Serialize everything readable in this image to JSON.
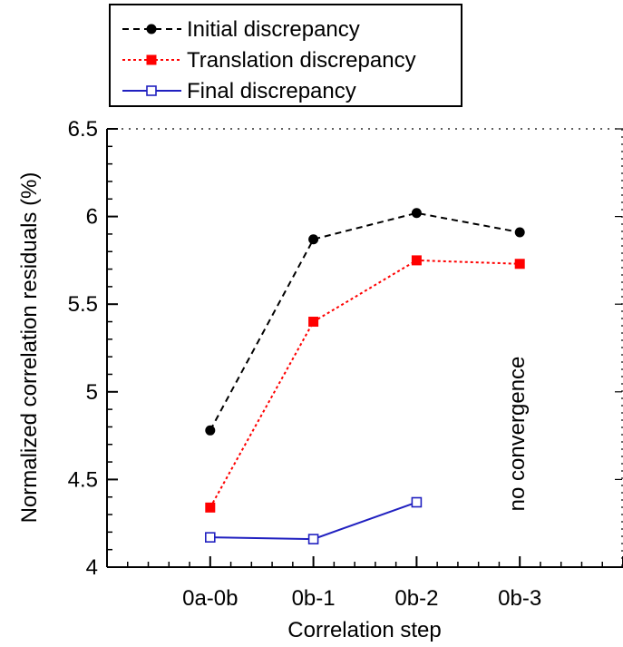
{
  "chart_data": {
    "type": "line",
    "title": "",
    "xlabel": "Correlation step",
    "ylabel": "Normalized correlation residuals (%)",
    "categories": [
      "0a-0b",
      "0b-1",
      "0b-2",
      "0b-3"
    ],
    "xlim": [
      -1,
      4
    ],
    "ylim": [
      4,
      6.5
    ],
    "yticks": [
      "4",
      "4.5",
      "5",
      "5.5",
      "6",
      "6.5"
    ],
    "grid": false,
    "legend_position": "top-left, outside plot",
    "series": [
      {
        "name": "Initial discrepancy",
        "values": [
          4.78,
          5.87,
          6.02,
          5.91
        ],
        "color": "#000000",
        "line_style": "dashed",
        "marker": "filled-circle"
      },
      {
        "name": "Translation discrepancy",
        "values": [
          4.34,
          5.4,
          5.75,
          5.73
        ],
        "color": "#ff0000",
        "line_style": "dotted",
        "marker": "filled-square"
      },
      {
        "name": "Final discrepancy",
        "values": [
          4.17,
          4.16,
          4.37,
          null
        ],
        "color": "#2020c0",
        "line_style": "solid",
        "marker": "open-square"
      }
    ],
    "annotations": [
      {
        "text": "no convergence",
        "category": "0b-3",
        "orientation": "vertical"
      }
    ]
  }
}
